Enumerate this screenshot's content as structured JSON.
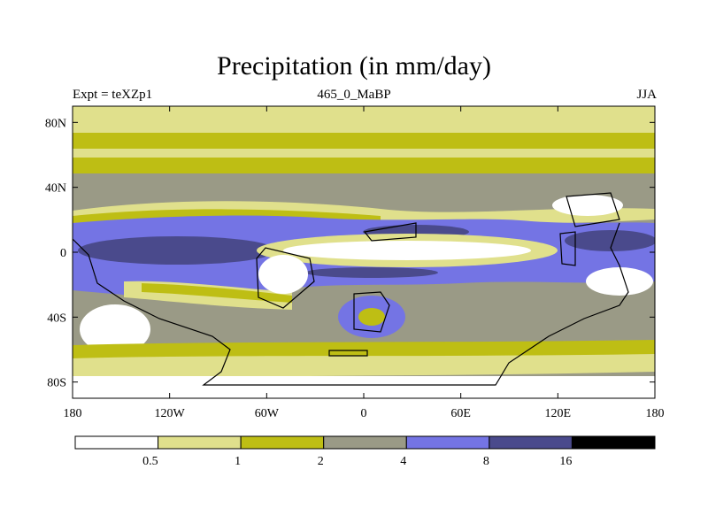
{
  "title": "Precipitation (in mm/day)",
  "subtitle_left": "Expt = teXZp1",
  "subtitle_center": "465_0_MaBP",
  "subtitle_right": "JJA",
  "map": {
    "lon_range": [
      -180,
      180
    ],
    "lat_range": [
      -90,
      90
    ],
    "x_ticks": [
      {
        "value": -180,
        "label": "180"
      },
      {
        "value": -120,
        "label": "120W"
      },
      {
        "value": -60,
        "label": "60W"
      },
      {
        "value": 0,
        "label": "0"
      },
      {
        "value": 60,
        "label": "60E"
      },
      {
        "value": 120,
        "label": "120E"
      },
      {
        "value": 180,
        "label": "180"
      }
    ],
    "y_ticks": [
      {
        "value": 80,
        "label": "80N"
      },
      {
        "value": 40,
        "label": "40N"
      },
      {
        "value": 0,
        "label": "0"
      },
      {
        "value": -40,
        "label": "40S"
      },
      {
        "value": -80,
        "label": "80S"
      }
    ]
  },
  "colorbar": {
    "colors": [
      "#ffffff",
      "#e0e08c",
      "#bebe14",
      "#9a9a86",
      "#7474e4",
      "#4a4a8c",
      "#000000"
    ],
    "boundaries": [
      "0.5",
      "1",
      "2",
      "4",
      "8",
      "16"
    ],
    "units": "mm/day"
  }
}
